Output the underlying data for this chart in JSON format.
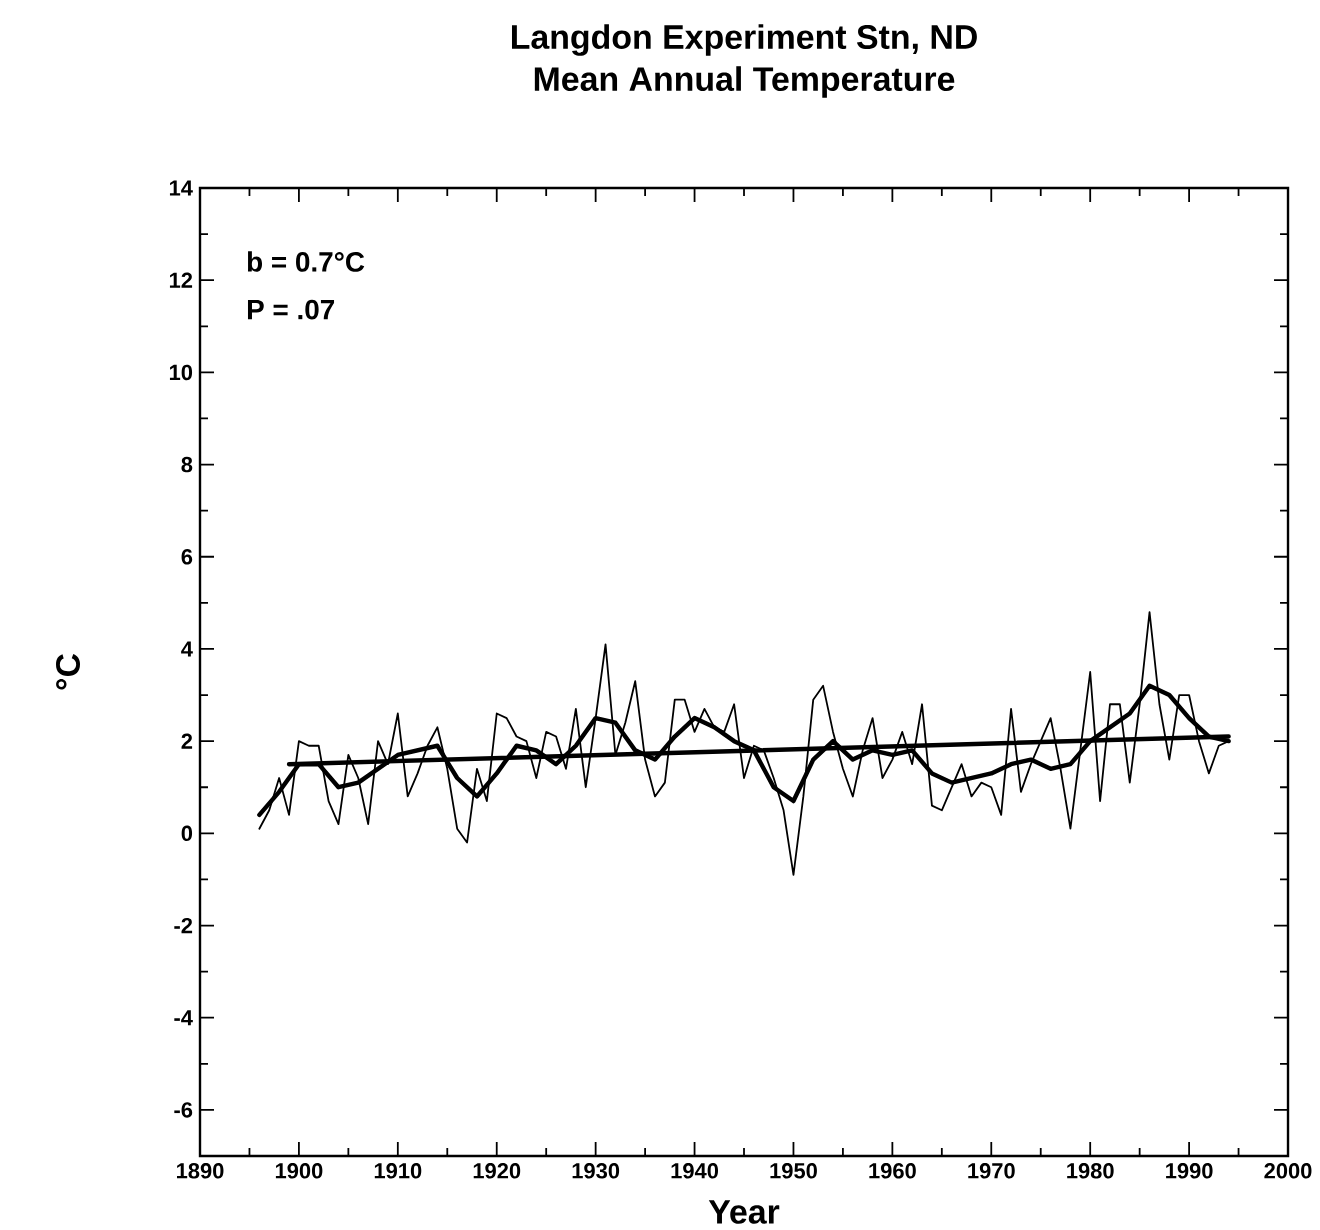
{
  "chart_data": {
    "type": "line",
    "title": "Langdon Experiment Stn, ND",
    "subtitle": "Mean Annual Temperature",
    "xlabel": "Year",
    "ylabel": "°C",
    "annotations": [
      "b = 0.7°C",
      "P = .07"
    ],
    "x": [
      1896,
      1897,
      1898,
      1899,
      1900,
      1901,
      1902,
      1903,
      1904,
      1905,
      1906,
      1907,
      1908,
      1909,
      1910,
      1911,
      1912,
      1913,
      1914,
      1915,
      1916,
      1917,
      1918,
      1919,
      1920,
      1921,
      1922,
      1923,
      1924,
      1925,
      1926,
      1927,
      1928,
      1929,
      1930,
      1931,
      1932,
      1933,
      1934,
      1935,
      1936,
      1937,
      1938,
      1939,
      1940,
      1941,
      1942,
      1943,
      1944,
      1945,
      1946,
      1947,
      1948,
      1949,
      1950,
      1951,
      1952,
      1953,
      1954,
      1955,
      1956,
      1957,
      1958,
      1959,
      1960,
      1961,
      1962,
      1963,
      1964,
      1965,
      1966,
      1967,
      1968,
      1969,
      1970,
      1971,
      1972,
      1973,
      1974,
      1975,
      1976,
      1977,
      1978,
      1979,
      1980,
      1981,
      1982,
      1983,
      1984,
      1985,
      1986,
      1987,
      1988,
      1989,
      1990,
      1991,
      1992,
      1993,
      1994
    ],
    "series": [
      {
        "color": "#000000",
        "values": [
          0.1,
          0.5,
          1.2,
          0.4,
          2.0,
          1.9,
          1.9,
          0.7,
          0.2,
          1.7,
          1.2,
          0.2,
          2.0,
          1.5,
          2.6,
          0.8,
          1.3,
          1.9,
          2.3,
          1.4,
          0.1,
          -0.2,
          1.4,
          0.7,
          2.6,
          2.5,
          2.1,
          2.0,
          1.2,
          2.2,
          2.1,
          1.4,
          2.7,
          1.0,
          2.5,
          4.1,
          1.7,
          2.4,
          3.3,
          1.6,
          0.8,
          1.1,
          2.9,
          2.9,
          2.2,
          2.7,
          2.3,
          2.2,
          2.8,
          1.2,
          1.9,
          1.8,
          1.2,
          0.5,
          -0.9,
          0.8,
          2.9,
          3.2,
          2.2,
          1.4,
          0.8,
          1.8,
          2.5,
          1.2,
          1.6,
          2.2,
          1.5,
          2.8,
          0.6,
          0.5,
          1.0,
          1.5,
          0.8,
          1.1,
          1.0,
          0.4,
          2.7,
          0.9,
          1.5,
          2.0,
          2.5,
          1.4,
          0.1,
          1.8,
          3.5,
          0.7,
          2.8,
          2.8,
          1.1,
          2.8,
          4.8,
          2.8,
          1.6,
          3.0,
          3.0,
          2.0,
          1.3,
          1.9,
          2.0
        ]
      },
      {
        "color": "#000000",
        "x": [
          1896,
          1898,
          1900,
          1902,
          1904,
          1906,
          1908,
          1910,
          1912,
          1914,
          1916,
          1918,
          1920,
          1922,
          1924,
          1926,
          1928,
          1930,
          1932,
          1934,
          1936,
          1938,
          1940,
          1942,
          1944,
          1946,
          1948,
          1950,
          1952,
          1954,
          1956,
          1958,
          1960,
          1962,
          1964,
          1966,
          1968,
          1970,
          1972,
          1974,
          1976,
          1978,
          1980,
          1982,
          1984,
          1986,
          1988,
          1990,
          1992,
          1994
        ],
        "values": [
          0.4,
          0.9,
          1.5,
          1.5,
          1.0,
          1.1,
          1.4,
          1.7,
          1.8,
          1.9,
          1.2,
          0.8,
          1.3,
          1.9,
          1.8,
          1.5,
          1.9,
          2.5,
          2.4,
          1.8,
          1.6,
          2.1,
          2.5,
          2.3,
          2.0,
          1.8,
          1.0,
          0.7,
          1.6,
          2.0,
          1.6,
          1.8,
          1.7,
          1.8,
          1.3,
          1.1,
          1.2,
          1.3,
          1.5,
          1.6,
          1.4,
          1.5,
          2.0,
          2.3,
          2.6,
          3.2,
          3.0,
          2.5,
          2.1,
          2.0
        ]
      },
      {
        "color": "#000000",
        "x": [
          1899,
          1994
        ],
        "values": [
          1.5,
          2.1
        ]
      }
    ],
    "xlim": [
      1890,
      2000
    ],
    "ylim": [
      -7,
      14
    ],
    "xticks": [
      1890,
      1900,
      1910,
      1920,
      1930,
      1940,
      1950,
      1960,
      1970,
      1980,
      1990,
      2000
    ],
    "yticks": [
      -6,
      -4,
      -2,
      0,
      2,
      4,
      6,
      8,
      10,
      12,
      14
    ],
    "grid": false,
    "marker": "none",
    "line_style": "solid"
  }
}
